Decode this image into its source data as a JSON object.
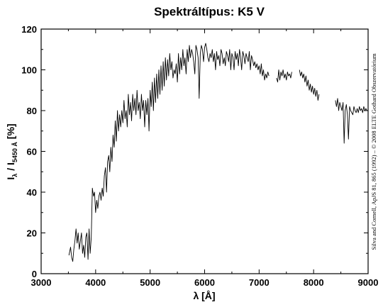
{
  "chart_data": {
    "type": "line",
    "title": "Spektráltípus: K5 V",
    "xlabel": "λ [Å]",
    "ylabel": {
      "base": "I",
      "sub1": "λ",
      "mid": " / I",
      "sub2": "5450 Å",
      "unit": " [%]"
    },
    "xlim": [
      3000,
      9000
    ],
    "ylim": [
      0,
      120
    ],
    "xticks": [
      3000,
      4000,
      5000,
      6000,
      7000,
      8000,
      9000
    ],
    "yticks": [
      0,
      20,
      40,
      60,
      80,
      100,
      120
    ],
    "grid": false,
    "legend": "none",
    "line_color": "#000000",
    "credit": "Silva and Cornell, ApJS 81, 865 (1992)  –  © 2008 ELTE Gothard Obszervatórium",
    "series": [
      {
        "segments": [
          {
            "x": [
              3510,
              3540,
              3560,
              3580,
              3600,
              3620,
              3640,
              3660,
              3680,
              3700,
              3720,
              3740,
              3760,
              3780,
              3800,
              3820,
              3840,
              3860,
              3880,
              3900,
              3920,
              3940,
              3960,
              3980,
              4000,
              4020,
              4040,
              4060,
              4080,
              4100,
              4120,
              4140,
              4160,
              4180,
              4200,
              4220,
              4240,
              4260,
              4280,
              4300,
              4320,
              4340,
              4360,
              4380,
              4400,
              4420,
              4440,
              4460,
              4480,
              4500,
              4520,
              4540,
              4560,
              4580,
              4600,
              4620,
              4640,
              4660,
              4680,
              4700,
              4720,
              4740,
              4760,
              4780,
              4800,
              4820,
              4840,
              4860,
              4880,
              4900,
              4920,
              4940,
              4960,
              4980,
              5000,
              5020,
              5040,
              5060,
              5080,
              5100,
              5120,
              5140,
              5160,
              5180,
              5200,
              5220,
              5240,
              5260,
              5280,
              5300,
              5320,
              5340,
              5360,
              5380,
              5400,
              5420,
              5440,
              5460,
              5480,
              5500,
              5520,
              5540,
              5560,
              5580,
              5600,
              5620,
              5640,
              5660,
              5680,
              5700,
              5720,
              5740,
              5760,
              5780,
              5800,
              5820,
              5840,
              5860,
              5880,
              5890,
              5900,
              5920,
              5940,
              5960,
              5980,
              6000,
              6020,
              6040,
              6060,
              6080,
              6100,
              6120,
              6140,
              6160,
              6180,
              6200,
              6220,
              6240,
              6260,
              6280,
              6300,
              6320,
              6340,
              6360,
              6380,
              6400,
              6420,
              6440,
              6460,
              6480,
              6500,
              6520,
              6540,
              6560,
              6580,
              6600,
              6620,
              6640,
              6660,
              6680,
              6700,
              6720,
              6740,
              6760,
              6780,
              6800,
              6820,
              6840,
              6860,
              6880,
              6900,
              6920,
              6940,
              6960,
              6980,
              7000,
              7020,
              7040,
              7060,
              7080,
              7100,
              7120,
              7140,
              7160,
              7180
            ],
            "y": [
              9,
              13,
              8,
              6,
              12,
              16,
              22,
              15,
              20,
              12,
              16,
              20,
              10,
              14,
              8,
              18,
              20,
              7,
              22,
              10,
              18,
              42,
              38,
              40,
              30,
              36,
              32,
              38,
              40,
              36,
              42,
              38,
              48,
              52,
              40,
              55,
              58,
              50,
              62,
              55,
              68,
              62,
              75,
              65,
              80,
              70,
              78,
              72,
              80,
              74,
              85,
              76,
              80,
              72,
              88,
              78,
              84,
              75,
              88,
              80,
              86,
              78,
              90,
              80,
              84,
              76,
              88,
              80,
              85,
              72,
              85,
              78,
              86,
              70,
              90,
              82,
              94,
              80,
              96,
              84,
              98,
              86,
              100,
              88,
              102,
              90,
              104,
              92,
              106,
              95,
              105,
              97,
              108,
              100,
              104,
              96,
              100,
              98,
              103,
              94,
              108,
              98,
              106,
              100,
              110,
              102,
              106,
              98,
              110,
              104,
              112,
              106,
              110,
              108,
              104,
              98,
              112,
              110,
              106,
              98,
              86,
              108,
              112,
              110,
              104,
              111,
              113,
              110,
              106,
              104,
              108,
              106,
              110,
              104,
              108,
              100,
              109,
              105,
              107,
              102,
              110,
              108,
              103,
              106,
              102,
              109,
              107,
              104,
              110,
              100,
              108,
              106,
              100,
              109,
              105,
              108,
              102,
              110,
              106,
              100,
              109,
              107,
              103,
              108,
              106,
              104,
              109,
              100,
              107,
              105,
              102,
              104,
              101,
              103,
              100,
              102,
              98,
              103,
              97,
              100,
              95,
              98,
              96,
              99,
              97
            ],
            "comment": ""
          },
          {
            "x": [
              7320,
              7340,
              7360,
              7380,
              7400,
              7420,
              7440,
              7460,
              7480,
              7500,
              7520,
              7540,
              7560,
              7580,
              7600
            ],
            "y": [
              96,
              94,
              100,
              95,
              99,
              97,
              100,
              96,
              98,
              95,
              99,
              97,
              98,
              96,
              99
            ]
          },
          {
            "x": [
              7740,
              7760,
              7780,
              7800,
              7820,
              7840,
              7860,
              7880,
              7900,
              7920,
              7940,
              7960,
              7980,
              8000,
              8020,
              8040,
              8060,
              8080,
              8100
            ],
            "y": [
              100,
              97,
              99,
              96,
              98,
              94,
              97,
              92,
              95,
              90,
              93,
              89,
              92,
              88,
              91,
              87,
              90,
              85,
              88
            ]
          },
          {
            "x": [
              8400,
              8420,
              8440,
              8460,
              8480,
              8500,
              8520,
              8540,
              8560,
              8580,
              8600,
              8620,
              8640,
              8660,
              8680,
              8700,
              8720,
              8740,
              8760,
              8780,
              8800,
              8820,
              8840,
              8860,
              8880,
              8900,
              8920,
              8940,
              8960,
              8980
            ],
            "y": [
              85,
              82,
              86,
              80,
              84,
              82,
              80,
              84,
              64,
              80,
              83,
              78,
              66,
              82,
              80,
              79,
              78,
              82,
              80,
              79,
              81,
              79,
              82,
              80,
              81,
              79,
              82,
              80,
              81,
              80
            ]
          }
        ]
      }
    ]
  }
}
